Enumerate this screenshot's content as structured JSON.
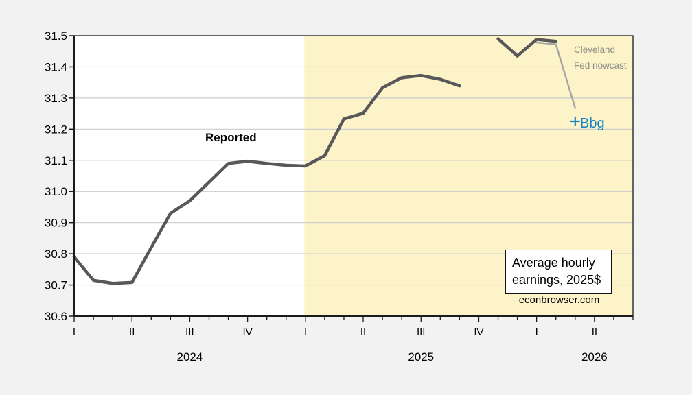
{
  "colors": {
    "page_bg": "#f2f2f2",
    "plot_bg": "#ffffff",
    "forecast_shade": "#fcf3c9",
    "grid": "#cbcbce",
    "axis": "#1a1a1a",
    "reported_line": "#58585a",
    "nowcast_line": "#a6a6a6",
    "nowcast_text": "#8e8e84",
    "bbg_blue": "#1583c4"
  },
  "chart_data": {
    "type": "line",
    "title": "Average hourly earnings, 2025$",
    "source": "econbrowser.com",
    "grid": true,
    "x_axis": {
      "months_total": 30,
      "months": [
        "2024-01",
        "2024-02",
        "2024-03",
        "2024-04",
        "2024-05",
        "2024-06",
        "2024-07",
        "2024-08",
        "2024-09",
        "2024-10",
        "2024-11",
        "2024-12",
        "2025-01",
        "2025-02",
        "2025-03",
        "2025-04",
        "2025-05",
        "2025-06",
        "2025-07",
        "2025-08",
        "2025-09",
        "2025-10",
        "2025-11",
        "2025-12",
        "2026-01",
        "2026-02",
        "2026-03",
        "2026-04",
        "2026-05",
        "2026-06"
      ],
      "quarter_ticks": [
        {
          "idx": 0,
          "label": "I"
        },
        {
          "idx": 3,
          "label": "II"
        },
        {
          "idx": 6,
          "label": "III"
        },
        {
          "idx": 9,
          "label": "IV"
        },
        {
          "idx": 12,
          "label": "I"
        },
        {
          "idx": 15,
          "label": "II"
        },
        {
          "idx": 18,
          "label": "III"
        },
        {
          "idx": 21,
          "label": "IV"
        },
        {
          "idx": 24,
          "label": "I"
        },
        {
          "idx": 27,
          "label": "II"
        }
      ],
      "year_labels": [
        {
          "idx": 6,
          "label": "2024"
        },
        {
          "idx": 18,
          "label": "2025"
        },
        {
          "idx": 27,
          "label": "2026"
        }
      ]
    },
    "y_axis": {
      "min": 30.6,
      "max": 31.5,
      "step": 0.1,
      "tick_labels": [
        "30.6",
        "30.7",
        "30.8",
        "30.9",
        "31.0",
        "31.1",
        "31.2",
        "31.3",
        "31.4",
        "31.5"
      ]
    },
    "forecast_shade_start_idx": 12,
    "series": [
      {
        "name": "reported",
        "label": "Reported",
        "start_idx": 0,
        "start_month": "2024-01",
        "values": [
          30.79,
          30.715,
          30.705,
          30.708,
          30.82,
          30.93,
          30.97,
          31.03,
          31.09,
          31.097,
          31.09,
          31.084,
          31.082,
          31.115,
          31.233,
          31.251,
          31.333,
          31.365,
          31.372,
          31.36,
          31.339
        ]
      },
      {
        "name": "cleveland-fed-nowcast",
        "label": "Cleveland Fed nowcast",
        "start_idx": 24,
        "start_month": "2026-01",
        "values": [
          31.478,
          31.472,
          31.268
        ]
      },
      {
        "name": "reported-after-gap",
        "label": "",
        "start_idx": 22,
        "start_month": "2025-11",
        "values": [
          31.49,
          31.435,
          31.488,
          31.482
        ]
      }
    ],
    "markers": [
      {
        "name": "bbg",
        "label": "Bbg",
        "symbol": "+",
        "idx": 26,
        "month": "2026-03",
        "value": 31.225
      }
    ]
  },
  "annotations": {
    "reported": "Reported",
    "nowcast_line1": "Cleveland",
    "nowcast_line2": "Fed nowcast",
    "bbg": "Bbg",
    "title_line1": "Average hourly",
    "title_line2": "earnings, 2025$",
    "credit": "econbrowser.com"
  }
}
